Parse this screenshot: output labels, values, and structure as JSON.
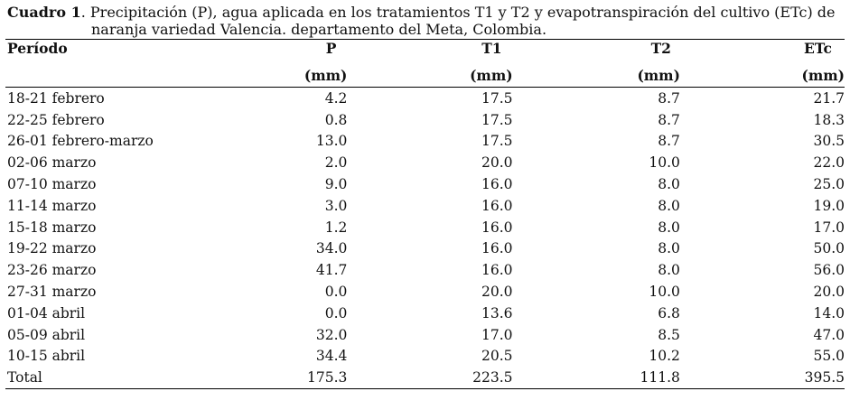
{
  "caption": {
    "label": "Cuadro 1",
    "text_line1": ". Precipitación (P), agua aplicada en los tratamientos T1 y T2 y evapotranspiración del cultivo (ETc) de",
    "text_line2": "naranja variedad Valencia. departamento del Meta, Colombia."
  },
  "table": {
    "headers": [
      "Período",
      "P",
      "T1",
      "T2",
      "ETc"
    ],
    "units": [
      "",
      "(mm)",
      "(mm)",
      "(mm)",
      "(mm)"
    ],
    "rows": [
      [
        "18-21 febrero",
        "4.2",
        "17.5",
        "8.7",
        "21.7"
      ],
      [
        "22-25 febrero",
        "0.8",
        "17.5",
        "8.7",
        "18.3"
      ],
      [
        "26-01 febrero-marzo",
        "13.0",
        "17.5",
        "8.7",
        "30.5"
      ],
      [
        "02-06 marzo",
        "2.0",
        "20.0",
        "10.0",
        "22.0"
      ],
      [
        "07-10 marzo",
        "9.0",
        "16.0",
        "8.0",
        "25.0"
      ],
      [
        "11-14 marzo",
        "3.0",
        "16.0",
        "8.0",
        "19.0"
      ],
      [
        "15-18 marzo",
        "1.2",
        "16.0",
        "8.0",
        "17.0"
      ],
      [
        "19-22 marzo",
        "34.0",
        "16.0",
        "8.0",
        "50.0"
      ],
      [
        "23-26 marzo",
        "41.7",
        "16.0",
        "8.0",
        "56.0"
      ],
      [
        "27-31 marzo",
        "0.0",
        "20.0",
        "10.0",
        "20.0"
      ],
      [
        "01-04 abril",
        "0.0",
        "13.6",
        "6.8",
        "14.0"
      ],
      [
        "05-09 abril",
        "32.0",
        "17.0",
        "8.5",
        "47.0"
      ],
      [
        "10-15 abril",
        "34.4",
        "20.5",
        "10.2",
        "55.0"
      ]
    ],
    "total": [
      "Total",
      "175.3",
      "223.5",
      "111.8",
      "395.5"
    ]
  }
}
